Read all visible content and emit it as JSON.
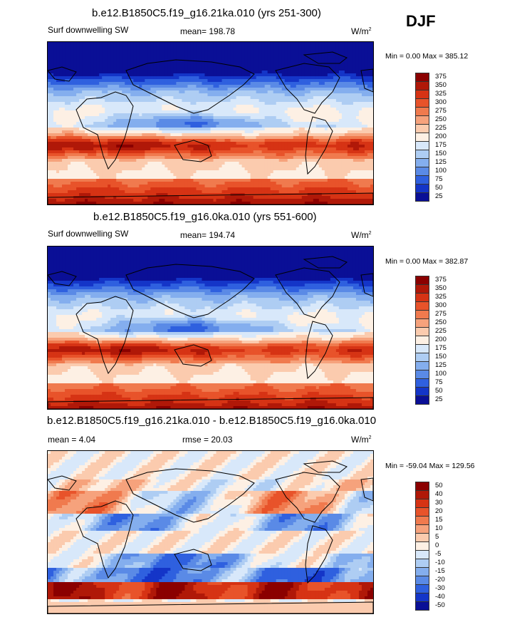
{
  "season": "DJF",
  "panels": [
    {
      "title": "b.e12.B1850C5.f19_g16.21ka.010 (yrs 251-300)",
      "left_label": "Surf downwelling SW",
      "stat1": "mean= 198.78",
      "stat2": "",
      "units": "W/m",
      "units_sup": "2",
      "minmax": "Min =   0.00 Max = 385.12",
      "kind": "abs",
      "levels": [
        "375",
        "350",
        "325",
        "300",
        "275",
        "250",
        "225",
        "200",
        "175",
        "150",
        "125",
        "100",
        "75",
        "50",
        "25"
      ],
      "colors": [
        "#8b0000",
        "#b01808",
        "#d63314",
        "#e8532a",
        "#f07a4e",
        "#f6a27c",
        "#fbcbae",
        "#fdf0e4",
        "#d8e8fa",
        "#aecdf3",
        "#84aeee",
        "#5a8ae6",
        "#2f60df",
        "#1435c8",
        "#0a0f96"
      ]
    },
    {
      "title": "b.e12.B1850C5.f19_g16.0ka.010 (yrs 551-600)",
      "left_label": "Surf downwelling SW",
      "stat1": "mean= 194.74",
      "stat2": "",
      "units": "W/m",
      "units_sup": "2",
      "minmax": "Min =   0.00 Max = 382.87",
      "kind": "abs",
      "levels": [
        "375",
        "350",
        "325",
        "300",
        "275",
        "250",
        "225",
        "200",
        "175",
        "150",
        "125",
        "100",
        "75",
        "50",
        "25"
      ],
      "colors": [
        "#8b0000",
        "#b01808",
        "#d63314",
        "#e8532a",
        "#f07a4e",
        "#f6a27c",
        "#fbcbae",
        "#fdf0e4",
        "#d8e8fa",
        "#aecdf3",
        "#84aeee",
        "#5a8ae6",
        "#2f60df",
        "#1435c8",
        "#0a0f96"
      ]
    },
    {
      "title": "b.e12.B1850C5.f19_g16.21ka.010 - b.e12.B1850C5.f19_g16.0ka.010",
      "left_label": "mean =   4.04",
      "stat1": "rmse =  20.03",
      "stat2": "",
      "units": "W/m",
      "units_sup": "2",
      "minmax": "Min = -59.04 Max = 129.56",
      "kind": "diff",
      "levels": [
        "50",
        "40",
        "30",
        "20",
        "15",
        "10",
        "5",
        "0",
        "-5",
        "-10",
        "-15",
        "-20",
        "-30",
        "-40",
        "-50"
      ],
      "colors": [
        "#8b0000",
        "#b01808",
        "#d63314",
        "#e8532a",
        "#f07a4e",
        "#f6a27c",
        "#fbcbae",
        "#fdf0e4",
        "#d8e8fa",
        "#aecdf3",
        "#84aeee",
        "#5a8ae6",
        "#2f60df",
        "#1435c8",
        "#0a0f96"
      ]
    }
  ],
  "chart_data": [
    {
      "type": "heatmap",
      "title": "b.e12.B1850C5.f19_g16.21ka.010 (yrs 251-300)",
      "variable": "Surf downwelling SW",
      "units": "W/m2",
      "mean": 198.78,
      "min": 0.0,
      "max": 385.12,
      "contour_levels": [
        25,
        50,
        75,
        100,
        125,
        150,
        175,
        200,
        225,
        250,
        275,
        300,
        325,
        350,
        375
      ]
    },
    {
      "type": "heatmap",
      "title": "b.e12.B1850C5.f19_g16.0ka.010 (yrs 551-600)",
      "variable": "Surf downwelling SW",
      "units": "W/m2",
      "mean": 194.74,
      "min": 0.0,
      "max": 382.87,
      "contour_levels": [
        25,
        50,
        75,
        100,
        125,
        150,
        175,
        200,
        225,
        250,
        275,
        300,
        325,
        350,
        375
      ]
    },
    {
      "type": "heatmap",
      "title": "b.e12.B1850C5.f19_g16.21ka.010 - b.e12.B1850C5.f19_g16.0ka.010",
      "variable": "difference",
      "units": "W/m2",
      "mean": 4.04,
      "rmse": 20.03,
      "min": -59.04,
      "max": 129.56,
      "contour_levels": [
        -50,
        -40,
        -30,
        -20,
        -15,
        -10,
        -5,
        0,
        5,
        10,
        15,
        20,
        30,
        40,
        50
      ]
    }
  ]
}
